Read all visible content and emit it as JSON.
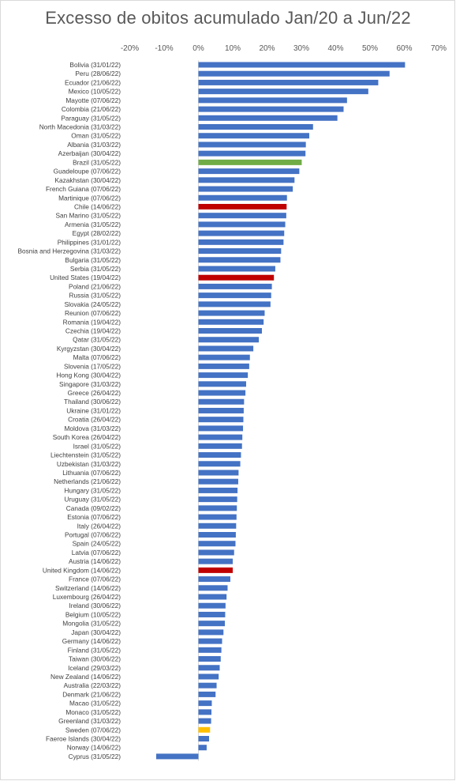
{
  "chart_data": {
    "type": "bar",
    "orientation": "horizontal",
    "title": "Excesso de obitos acumulado Jan/20 a Jun/22",
    "xlabel": "",
    "ylabel": "",
    "xlim": [
      -20,
      70
    ],
    "x_ticks": [
      "-20%",
      "-10%",
      "0%",
      "10%",
      "20%",
      "30%",
      "40%",
      "50%",
      "60%",
      "70%"
    ],
    "x_axis_position": "top",
    "gridlines": false,
    "legend": "none",
    "default_color": "#4472c4",
    "categories": [
      "Bolivia (31/01/22)",
      "Peru (28/06/22)",
      "Ecuador (21/06/22)",
      "Mexico (10/05/22)",
      "Mayotte (07/06/22)",
      "Colombia (21/06/22)",
      "Paraguay (31/05/22)",
      "North Macedonia (31/03/22)",
      "Oman (31/05/22)",
      "Albania (31/03/22)",
      "Azerbaijan (30/04/22)",
      "Brazil (31/05/22)",
      "Guadeloupe (07/06/22)",
      "Kazakhstan (30/04/22)",
      "French Guiana (07/06/22)",
      "Martinique (07/06/22)",
      "Chile (14/06/22)",
      "San Marino (31/05/22)",
      "Armenia (31/05/22)",
      "Egypt (28/02/22)",
      "Philippines (31/01/22)",
      "Bosnia and Herzegovina (31/03/22)",
      "Bulgaria (31/05/22)",
      "Serbia (31/05/22)",
      "United States (19/04/22)",
      "Poland (21/06/22)",
      "Russia (31/05/22)",
      "Slovakia (24/05/22)",
      "Reunion (07/06/22)",
      "Romania (19/04/22)",
      "Czechia (19/04/22)",
      "Qatar (31/05/22)",
      "Kyrgyzstan (30/04/22)",
      "Malta (07/06/22)",
      "Slovenia (17/05/22)",
      "Hong Kong (30/04/22)",
      "Singapore (31/03/22)",
      "Greece (26/04/22)",
      "Thailand (30/06/22)",
      "Ukraine (31/01/22)",
      "Croatia (26/04/22)",
      "Moldova (31/03/22)",
      "South Korea (26/04/22)",
      "Israel (31/05/22)",
      "Liechtenstein (31/05/22)",
      "Uzbekistan (31/03/22)",
      "Lithuania (07/06/22)",
      "Netherlands (21/06/22)",
      "Hungary (31/05/22)",
      "Uruguay (31/05/22)",
      "Canada (09/02/22)",
      "Estonia (07/06/22)",
      "Italy (26/04/22)",
      "Portugal (07/06/22)",
      "Spain (24/05/22)",
      "Latvia (07/06/22)",
      "Austria (14/06/22)",
      "United Kingdom (14/06/22)",
      "France (07/06/22)",
      "Switzerland (14/06/22)",
      "Luxembourg (26/04/22)",
      "Ireland (30/06/22)",
      "Belgium (10/05/22)",
      "Mongolia (31/05/22)",
      "Japan (30/04/22)",
      "Germany (14/06/22)",
      "Finland (31/05/22)",
      "Taiwan (30/06/22)",
      "Iceland (29/03/22)",
      "New Zealand (14/06/22)",
      "Australia (22/03/22)",
      "Denmark (21/06/22)",
      "Macao (31/05/22)",
      "Monaco (31/05/22)",
      "Greenland (31/03/22)",
      "Sweden (07/06/22)",
      "Faeroe Islands (30/04/22)",
      "Norway (14/06/22)",
      "Cyprus (31/05/22)"
    ],
    "values": [
      60.2,
      55.7,
      52.4,
      49.5,
      43.3,
      42.3,
      40.5,
      33.4,
      32.3,
      31.3,
      31.2,
      30.1,
      29.4,
      28.0,
      27.5,
      25.8,
      25.7,
      25.6,
      25.3,
      25.0,
      24.8,
      24.1,
      23.9,
      22.4,
      22.0,
      21.4,
      21.2,
      21.0,
      19.3,
      19.0,
      18.5,
      17.6,
      16.0,
      15.0,
      14.8,
      14.4,
      13.9,
      13.7,
      13.3,
      13.2,
      13.1,
      13.0,
      12.8,
      12.7,
      12.4,
      12.2,
      11.7,
      11.6,
      11.4,
      11.3,
      11.2,
      11.1,
      11.0,
      10.9,
      10.8,
      10.4,
      10.0,
      10.0,
      9.3,
      8.5,
      8.2,
      7.9,
      7.8,
      7.7,
      7.3,
      6.9,
      6.7,
      6.5,
      6.2,
      5.9,
      5.3,
      5.0,
      3.9,
      3.8,
      3.7,
      3.4,
      3.1,
      2.4,
      -12.3
    ],
    "bar_colors": {
      "Brazil (31/05/22)": "#70ad47",
      "Chile (14/06/22)": "#c00000",
      "United States (19/04/22)": "#c00000",
      "United Kingdom (14/06/22)": "#c00000",
      "Sweden (07/06/22)": "#ffc000"
    }
  }
}
